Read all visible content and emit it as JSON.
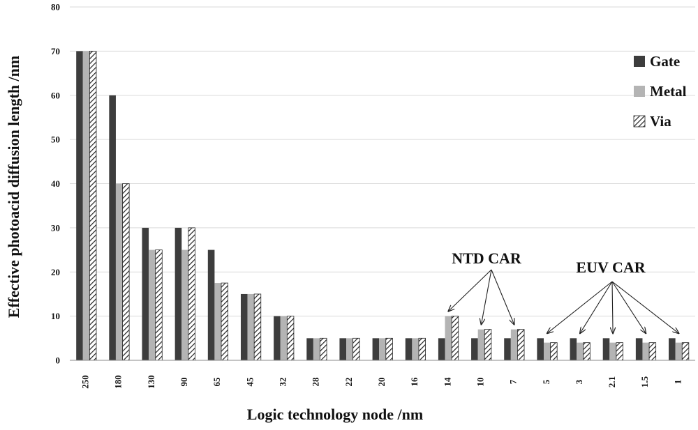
{
  "chart_data": {
    "type": "bar",
    "title": "",
    "xlabel": "Logic technology node /nm",
    "ylabel": "Effective photoacid diffusion length /nm",
    "ylim": [
      0,
      80
    ],
    "yticks": [
      0,
      10,
      20,
      30,
      40,
      50,
      60,
      70,
      80
    ],
    "grid": "horizontal",
    "legend_position": "top-right",
    "categories": [
      "250",
      "180",
      "130",
      "90",
      "65",
      "45",
      "32",
      "28",
      "22",
      "20",
      "16",
      "14",
      "10",
      "7",
      "5",
      "3",
      "2.1",
      "1.5",
      "1"
    ],
    "series": [
      {
        "name": "Gate",
        "color": "#3d3d3d",
        "pattern": "solid",
        "values": [
          70,
          60,
          30,
          30,
          25,
          15,
          10,
          5,
          5,
          5,
          5,
          5,
          5,
          5,
          5,
          5,
          5,
          5,
          5
        ]
      },
      {
        "name": "Metal",
        "color": "#b4b4b4",
        "pattern": "solid",
        "values": [
          70,
          40,
          25,
          25,
          17.5,
          15,
          10,
          5,
          5,
          5,
          5,
          10,
          7,
          7,
          4,
          4,
          4,
          4,
          4
        ]
      },
      {
        "name": "Via",
        "color": "#222222",
        "pattern": "diagonal-hatch",
        "values": [
          70,
          40,
          25,
          30,
          17.5,
          15,
          10,
          5,
          5,
          5,
          5,
          10,
          7,
          7,
          4,
          4,
          4,
          4,
          4
        ]
      }
    ],
    "annotations": [
      {
        "text": "NTD CAR",
        "points_to": [
          "14",
          "10",
          "7"
        ]
      },
      {
        "text": "EUV CAR",
        "points_to": [
          "5",
          "3",
          "2.1",
          "1.5",
          "1"
        ]
      }
    ]
  }
}
